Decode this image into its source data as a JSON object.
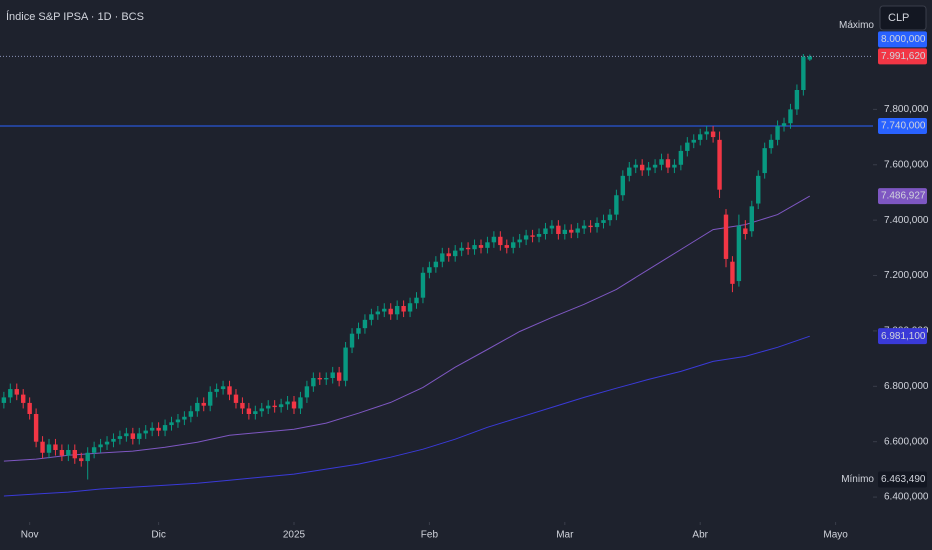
{
  "chart_data": {
    "type": "candlestick",
    "title": "Índice S&P IPSA · 1D · BCS",
    "currency": "CLP",
    "background": "#1e222d",
    "grid": false,
    "xlim": [
      -0.6,
      134.8
    ],
    "xticks": [
      {
        "value": 4,
        "label": "Nov"
      },
      {
        "value": 24,
        "label": "Dic"
      },
      {
        "value": 45,
        "label": "2025"
      },
      {
        "value": 66,
        "label": "Feb"
      },
      {
        "value": 87,
        "label": "Mar"
      },
      {
        "value": 108,
        "label": "Abr"
      },
      {
        "value": 129,
        "label": "Mayo"
      }
    ],
    "ylim": [
      6310000,
      8195000
    ],
    "yticks": [
      {
        "value": 6400000,
        "label": "6.400,000"
      },
      {
        "value": 6600000,
        "label": "6.600,000"
      },
      {
        "value": 6800000,
        "label": "6.800,000"
      },
      {
        "value": 7000000,
        "label": "7.000,000"
      },
      {
        "value": 7200000,
        "label": "7.200,000"
      },
      {
        "value": 7400000,
        "label": "7.400,000"
      },
      {
        "value": 7600000,
        "label": "7.600,000"
      },
      {
        "value": 7800000,
        "label": "7.800,000"
      }
    ],
    "candles": {
      "up_color": "#089981",
      "down_color": "#f23645",
      "open": [
        6740000,
        6760000,
        6790000,
        6770000,
        6740000,
        6700000,
        6600000,
        6560000,
        6590000,
        6570000,
        6550000,
        6570000,
        6540000,
        6530000,
        6560000,
        6580000,
        6590000,
        6600000,
        6610000,
        6620000,
        6630000,
        6610000,
        6630000,
        6640000,
        6650000,
        6640000,
        6660000,
        6670000,
        6680000,
        6690000,
        6710000,
        6740000,
        6730000,
        6780000,
        6790000,
        6800000,
        6770000,
        6740000,
        6720000,
        6700000,
        6710000,
        6720000,
        6730000,
        6725000,
        6735000,
        6745000,
        6720000,
        6760000,
        6800000,
        6830000,
        6825000,
        6830000,
        6850000,
        6820000,
        6940000,
        6990000,
        7010000,
        7040000,
        7060000,
        7070000,
        7080000,
        7060000,
        7090000,
        7070000,
        7100000,
        7120000,
        7210000,
        7230000,
        7250000,
        7280000,
        7270000,
        7290000,
        7300000,
        7295000,
        7310000,
        7300000,
        7320000,
        7340000,
        7310000,
        7300000,
        7320000,
        7330000,
        7345000,
        7340000,
        7350000,
        7370000,
        7380000,
        7350000,
        7365000,
        7355000,
        7370000,
        7380000,
        7375000,
        7390000,
        7400000,
        7420000,
        7490000,
        7560000,
        7590000,
        7600000,
        7580000,
        7590000,
        7600000,
        7620000,
        7590000,
        7600000,
        7650000,
        7680000,
        7690000,
        7710000,
        7720000,
        7690000,
        7420000,
        7250000,
        7180000,
        7370000,
        7360000,
        7460000,
        7570000,
        7660000,
        7690000,
        7740000,
        7750000,
        7800000,
        7870000,
        7980000
      ],
      "high": [
        6780000,
        6810000,
        6810000,
        6790000,
        6760000,
        6720000,
        6620000,
        6610000,
        6610000,
        6590000,
        6590000,
        6590000,
        6560000,
        6580000,
        6600000,
        6610000,
        6620000,
        6630000,
        6640000,
        6650000,
        6650000,
        6650000,
        6660000,
        6670000,
        6670000,
        6680000,
        6690000,
        6700000,
        6710000,
        6730000,
        6760000,
        6760000,
        6800000,
        6810000,
        6820000,
        6820000,
        6790000,
        6760000,
        6740000,
        6730000,
        6740000,
        6750000,
        6750000,
        6755000,
        6765000,
        6765000,
        6780000,
        6820000,
        6850000,
        6850000,
        6850000,
        6870000,
        6870000,
        6960000,
        7010000,
        7030000,
        7060000,
        7080000,
        7090000,
        7100000,
        7100000,
        7110000,
        7110000,
        7120000,
        7140000,
        7230000,
        7250000,
        7270000,
        7300000,
        7300000,
        7310000,
        7320000,
        7320000,
        7330000,
        7330000,
        7340000,
        7360000,
        7360000,
        7330000,
        7340000,
        7350000,
        7365000,
        7365000,
        7370000,
        7390000,
        7400000,
        7400000,
        7385000,
        7385000,
        7390000,
        7400000,
        7400000,
        7410000,
        7420000,
        7440000,
        7510000,
        7580000,
        7610000,
        7620000,
        7620000,
        7610000,
        7620000,
        7640000,
        7640000,
        7620000,
        7670000,
        7700000,
        7710000,
        7730000,
        7740000,
        7740000,
        7720000,
        7440000,
        7270000,
        7420000,
        7400000,
        7470000,
        7580000,
        7680000,
        7710000,
        7760000,
        7770000,
        7820000,
        7890000,
        8000000,
        7998000
      ],
      "low": [
        6720000,
        6740000,
        6750000,
        6720000,
        6680000,
        6580000,
        6540000,
        6540000,
        6550000,
        6530000,
        6530000,
        6520000,
        6510000,
        6463490,
        6540000,
        6560000,
        6570000,
        6580000,
        6590000,
        6600000,
        6590000,
        6590000,
        6610000,
        6620000,
        6620000,
        6620000,
        6640000,
        6650000,
        6660000,
        6670000,
        6690000,
        6710000,
        6710000,
        6760000,
        6770000,
        6750000,
        6720000,
        6700000,
        6680000,
        6680000,
        6690000,
        6700000,
        6705000,
        6705000,
        6715000,
        6700000,
        6700000,
        6740000,
        6780000,
        6805000,
        6805000,
        6810000,
        6800000,
        6800000,
        6920000,
        6970000,
        6990000,
        7020000,
        7040000,
        7050000,
        7040000,
        7040000,
        7050000,
        7050000,
        7080000,
        7100000,
        7190000,
        7210000,
        7230000,
        7250000,
        7250000,
        7270000,
        7275000,
        7275000,
        7280000,
        7280000,
        7300000,
        7290000,
        7280000,
        7280000,
        7300000,
        7310000,
        7320000,
        7320000,
        7330000,
        7350000,
        7330000,
        7330000,
        7335000,
        7335000,
        7350000,
        7355000,
        7355000,
        7370000,
        7380000,
        7400000,
        7470000,
        7540000,
        7570000,
        7560000,
        7560000,
        7570000,
        7580000,
        7570000,
        7570000,
        7580000,
        7630000,
        7660000,
        7670000,
        7690000,
        7680000,
        7480000,
        7230000,
        7140000,
        7160000,
        7330000,
        7340000,
        7440000,
        7550000,
        7640000,
        7670000,
        7720000,
        7730000,
        7780000,
        7850000,
        7975000
      ],
      "close": [
        6760000,
        6790000,
        6770000,
        6740000,
        6700000,
        6600000,
        6560000,
        6590000,
        6570000,
        6550000,
        6570000,
        6540000,
        6530000,
        6560000,
        6580000,
        6590000,
        6600000,
        6610000,
        6620000,
        6630000,
        6610000,
        6630000,
        6640000,
        6650000,
        6640000,
        6660000,
        6670000,
        6680000,
        6690000,
        6710000,
        6740000,
        6730000,
        6780000,
        6790000,
        6800000,
        6770000,
        6740000,
        6720000,
        6700000,
        6710000,
        6720000,
        6730000,
        6725000,
        6735000,
        6745000,
        6720000,
        6760000,
        6800000,
        6830000,
        6825000,
        6830000,
        6850000,
        6820000,
        6940000,
        6990000,
        7010000,
        7040000,
        7060000,
        7070000,
        7080000,
        7060000,
        7090000,
        7070000,
        7100000,
        7120000,
        7210000,
        7230000,
        7250000,
        7280000,
        7270000,
        7290000,
        7300000,
        7295000,
        7310000,
        7300000,
        7320000,
        7340000,
        7310000,
        7300000,
        7320000,
        7330000,
        7345000,
        7340000,
        7350000,
        7370000,
        7380000,
        7350000,
        7365000,
        7355000,
        7370000,
        7380000,
        7375000,
        7390000,
        7400000,
        7420000,
        7490000,
        7560000,
        7590000,
        7600000,
        7580000,
        7590000,
        7600000,
        7620000,
        7590000,
        7600000,
        7650000,
        7680000,
        7690000,
        7710000,
        7720000,
        7700000,
        7510000,
        7260000,
        7170000,
        7380000,
        7350000,
        7450000,
        7560000,
        7660000,
        7690000,
        7740000,
        7750000,
        7800000,
        7870000,
        7990000,
        7991620
      ],
      "last_label": "7.991,620"
    },
    "moving_averages": [
      {
        "color": "#7e57c2",
        "x": [
          0,
          5,
          10,
          15,
          20,
          25,
          30,
          35,
          40,
          45,
          50,
          55,
          60,
          65,
          70,
          75,
          80,
          85,
          90,
          95,
          100,
          105,
          110,
          115,
          120,
          125
        ],
        "values": [
          6530000,
          6537000,
          6551000,
          6559000,
          6566000,
          6580000,
          6598000,
          6623000,
          6634000,
          6645000,
          6667000,
          6703000,
          6742000,
          6796000,
          6869000,
          6933000,
          6998000,
          7049000,
          7096000,
          7150000,
          7222000,
          7294000,
          7366000,
          7384000,
          7420000,
          7486927
        ],
        "last_label": "7.486,927"
      },
      {
        "color": "#3a3ad8",
        "x": [
          0,
          5,
          10,
          15,
          20,
          25,
          30,
          35,
          40,
          45,
          50,
          55,
          60,
          65,
          70,
          75,
          80,
          85,
          90,
          95,
          100,
          105,
          110,
          115,
          120,
          125
        ],
        "values": [
          6404000,
          6411000,
          6418000,
          6429000,
          6436000,
          6443000,
          6450000,
          6461000,
          6472000,
          6483000,
          6501000,
          6519000,
          6544000,
          6573000,
          6609000,
          6652000,
          6688000,
          6724000,
          6760000,
          6793000,
          6825000,
          6854000,
          6890000,
          6908000,
          6941000,
          6981100
        ],
        "last_label": "6.981,100"
      }
    ],
    "horizontal_line": {
      "value": 7740000,
      "label": "7.740,000",
      "color": "#2962ff"
    },
    "extremes": [
      {
        "text": "Máximo",
        "value": 8000000,
        "label": "8.000,000",
        "color": "#2962ff"
      },
      {
        "text": "Mínimo",
        "value": 6463490,
        "label": "6.463,490",
        "color": "#131722"
      }
    ]
  }
}
